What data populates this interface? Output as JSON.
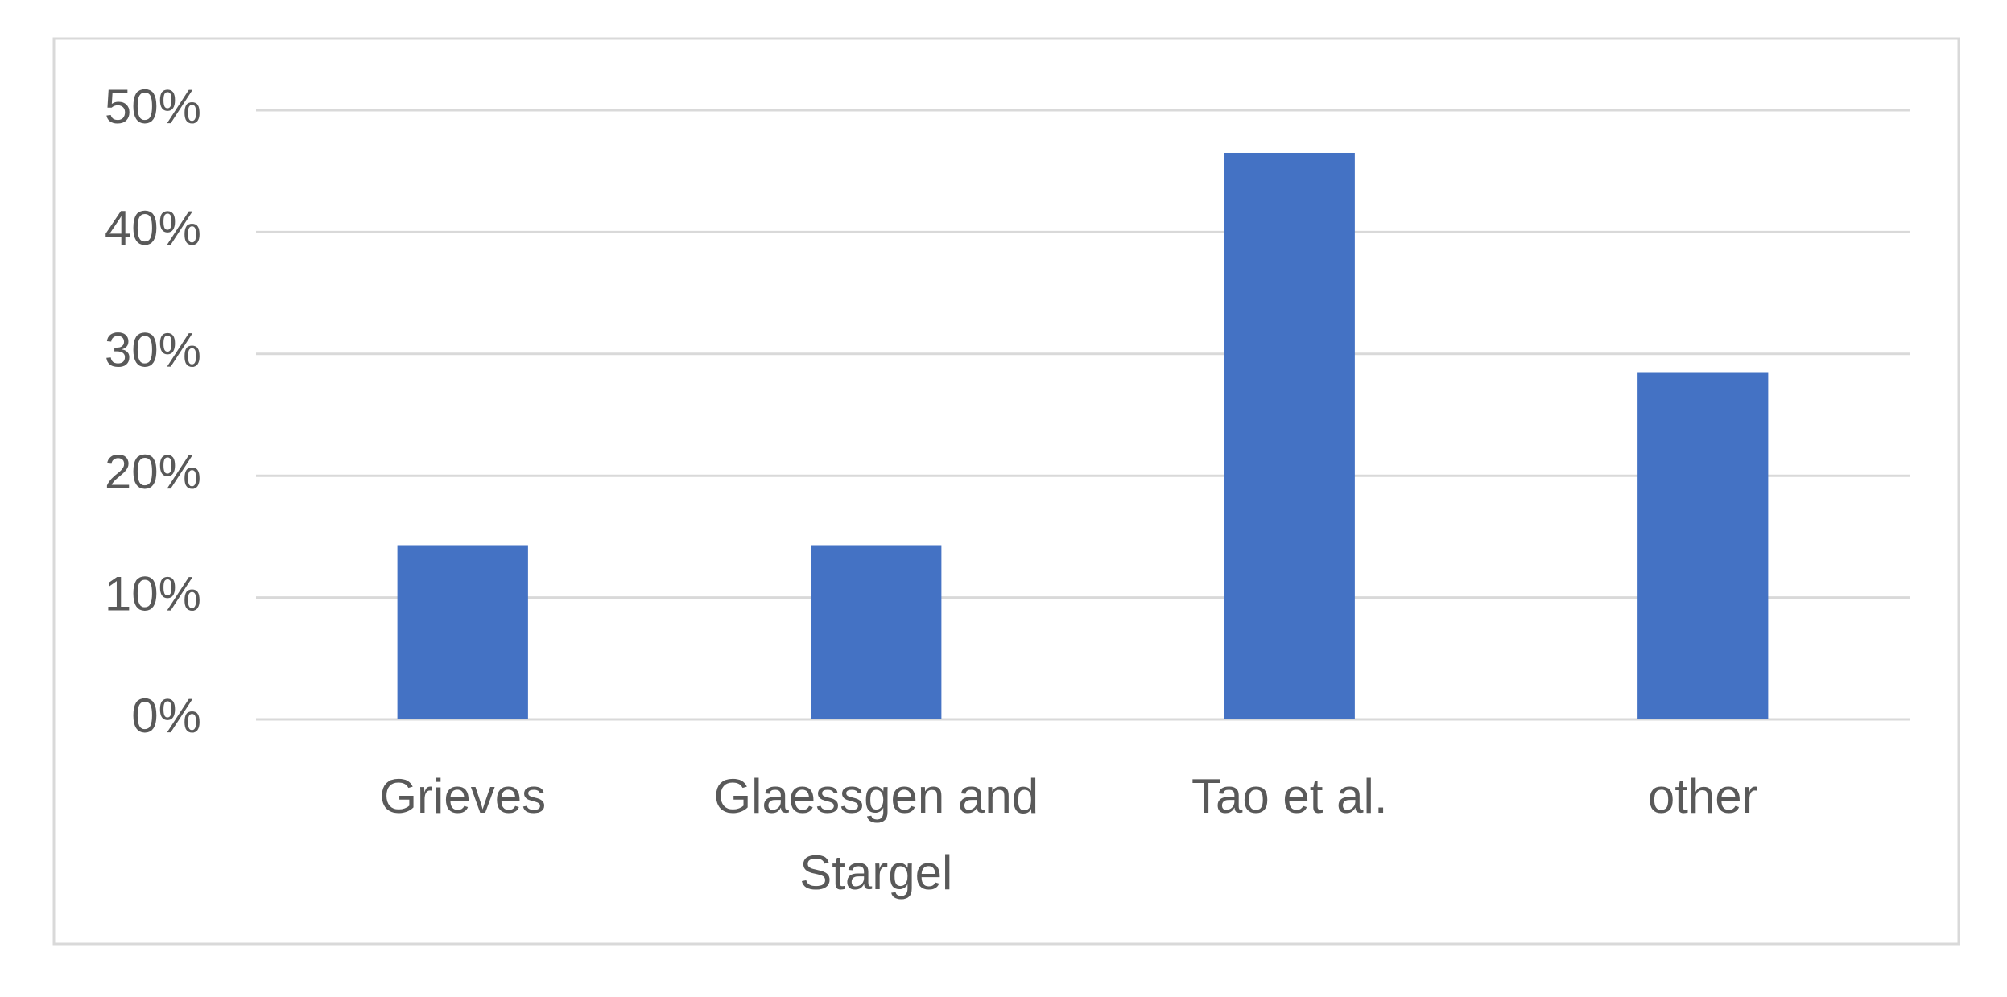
{
  "chart_data": {
    "type": "bar",
    "categories": [
      "Grieves",
      "Glaessgen and Stargel",
      "Tao et al.",
      "other"
    ],
    "values": [
      14.3,
      14.3,
      46.5,
      28.5
    ],
    "color": "#4472c4",
    "ylim": [
      0,
      50
    ],
    "yticks": [
      {
        "value": 0,
        "label": "0%"
      },
      {
        "value": 10,
        "label": "10%"
      },
      {
        "value": 20,
        "label": "20%"
      },
      {
        "value": 30,
        "label": "30%"
      },
      {
        "value": 40,
        "label": "40%"
      },
      {
        "value": 50,
        "label": "50%"
      }
    ],
    "grid": true
  }
}
